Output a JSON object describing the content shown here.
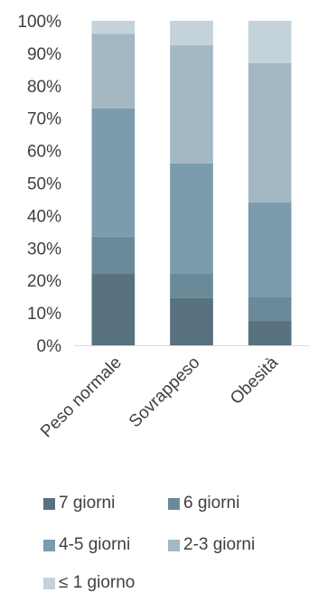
{
  "chart_data": {
    "type": "bar",
    "stacked": true,
    "percent": true,
    "categories": [
      "Peso normale",
      "Sovrappeso",
      "Obesità"
    ],
    "series": [
      {
        "name": "7 giorni",
        "values": [
          22,
          14.5,
          7.5
        ],
        "color": "#58717E"
      },
      {
        "name": "6 giorni",
        "values": [
          11.5,
          7.5,
          7.5
        ],
        "color": "#6A8A99"
      },
      {
        "name": "4-5 giorni",
        "values": [
          39.5,
          34,
          29
        ],
        "color": "#7B9CAD"
      },
      {
        "name": "2-3 giorni",
        "values": [
          23,
          36.5,
          43
        ],
        "color": "#A4B8C4"
      },
      {
        "name": "≤ 1 giorno",
        "values": [
          4,
          7.5,
          13
        ],
        "color": "#C4D2DA"
      }
    ],
    "yticks": [
      "0%",
      "10%",
      "20%",
      "30%",
      "40%",
      "50%",
      "60%",
      "70%",
      "80%",
      "90%",
      "100%"
    ],
    "ylim": [
      0,
      100
    ],
    "grid": false,
    "legend_position": "bottom"
  }
}
